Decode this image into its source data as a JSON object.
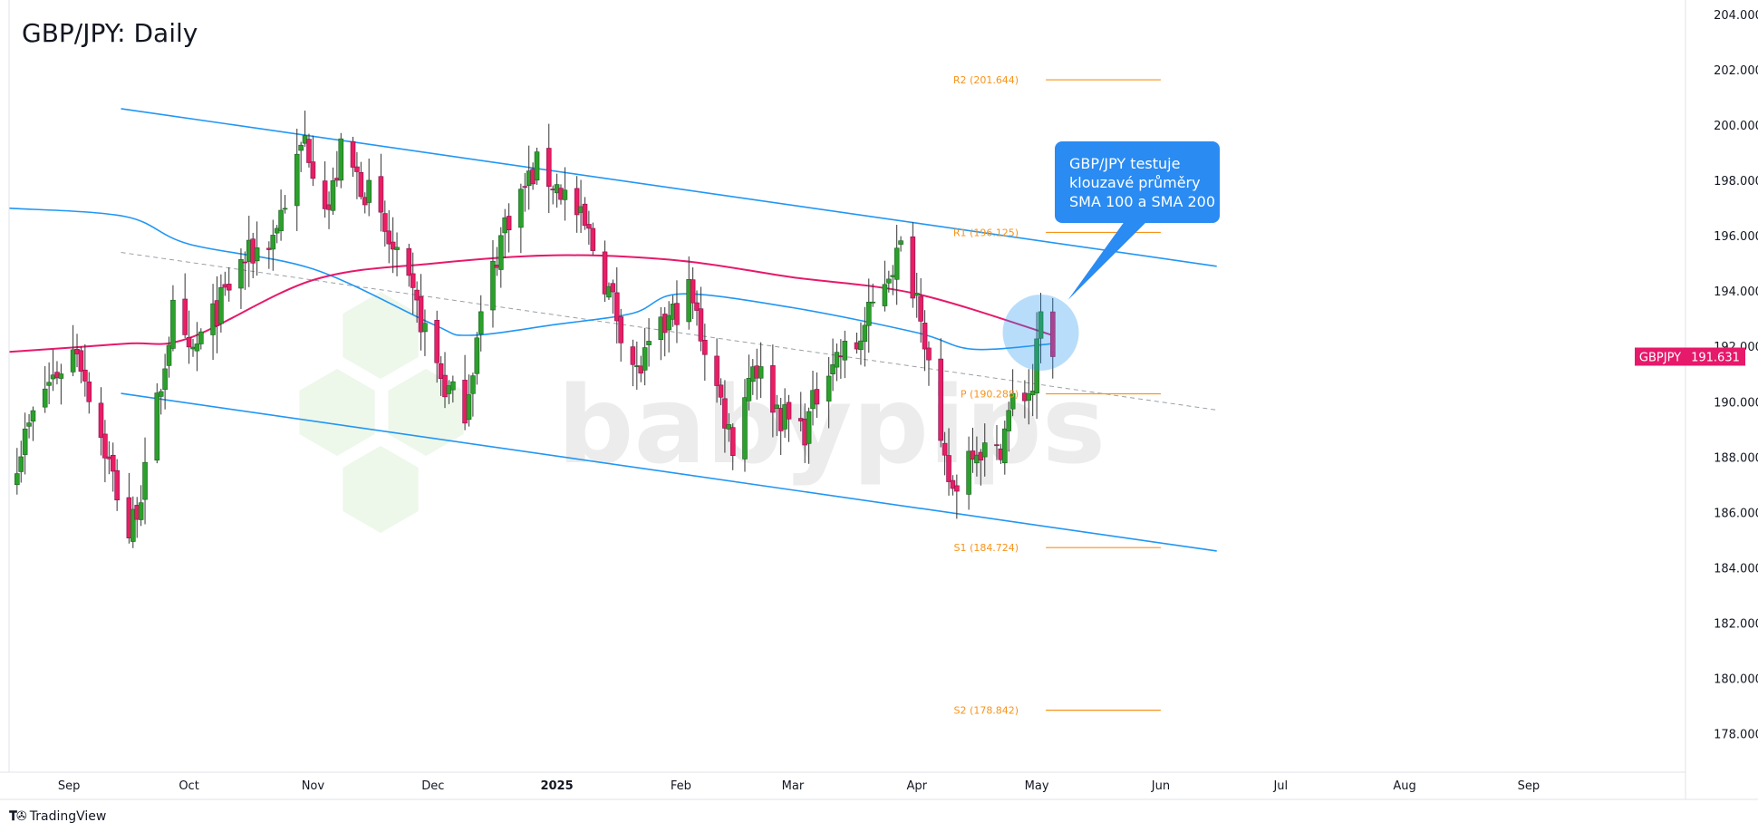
{
  "chart_title": "GBP/JPY: Daily",
  "callout_lines": [
    "GBP/JPY testuje",
    "klouzavé průměry",
    "SMA 100 a SMA 200"
  ],
  "footer": {
    "brand": "TradingView",
    "logo_icon": "tradingview-logo-icon"
  },
  "watermark": "babypips",
  "colors": {
    "up": "#089981",
    "up_fill": "#2ca02c",
    "down": "#e91e63",
    "sma100": "#2196f3",
    "sma200": "#e6196b",
    "channel": "#2196f3",
    "pivot": "#f7931a",
    "callout": "#2a8bf2"
  },
  "chart_data": {
    "type": "candlestick",
    "symbol": "GBPJPY",
    "last_price": "191.631",
    "y_range": [
      176.6,
      204.4
    ],
    "y_ticks": [
      "178.000",
      "180.000",
      "182.000",
      "184.000",
      "186.000",
      "188.000",
      "190.000",
      "192.000",
      "194.000",
      "196.000",
      "198.000",
      "200.000",
      "202.000",
      "204.000"
    ],
    "x_range": [
      "2024-08-17",
      "2025-10-10"
    ],
    "x_ticks": [
      {
        "label": "Sep",
        "date": "2024-09-01"
      },
      {
        "label": "Oct",
        "date": "2024-10-01"
      },
      {
        "label": "Nov",
        "date": "2024-11-01"
      },
      {
        "label": "Dec",
        "date": "2024-12-01"
      },
      {
        "label": "2025",
        "date": "2025-01-01",
        "bold": true
      },
      {
        "label": "Feb",
        "date": "2025-02-01"
      },
      {
        "label": "Mar",
        "date": "2025-03-01"
      },
      {
        "label": "Apr",
        "date": "2025-04-01"
      },
      {
        "label": "May",
        "date": "2025-05-01"
      },
      {
        "label": "Jun",
        "date": "2025-06-01"
      },
      {
        "label": "Jul",
        "date": "2025-07-01"
      },
      {
        "label": "Aug",
        "date": "2025-08-01"
      },
      {
        "label": "Sep",
        "date": "2025-09-01"
      }
    ],
    "candles_start": "2024-08-19",
    "close_anchors": [
      [
        "2024-08-19",
        188.0
      ],
      [
        "2024-08-26",
        190.5
      ],
      [
        "2024-09-03",
        192.0
      ],
      [
        "2024-09-09",
        188.8
      ],
      [
        "2024-09-16",
        185.2
      ],
      [
        "2024-09-20",
        187.3
      ],
      [
        "2024-09-27",
        193.2
      ],
      [
        "2024-10-01",
        191.5
      ],
      [
        "2024-10-08",
        193.3
      ],
      [
        "2024-10-14",
        195.0
      ],
      [
        "2024-10-22",
        196.0
      ],
      [
        "2024-10-30",
        199.5
      ],
      [
        "2024-11-05",
        197.0
      ],
      [
        "2024-11-08",
        199.0
      ],
      [
        "2024-11-15",
        197.5
      ],
      [
        "2024-11-22",
        195.0
      ],
      [
        "2024-11-28",
        193.0
      ],
      [
        "2024-12-04",
        190.5
      ],
      [
        "2024-12-09",
        189.8
      ],
      [
        "2024-12-13",
        193.0
      ],
      [
        "2024-12-19",
        196.5
      ],
      [
        "2024-12-27",
        198.5
      ],
      [
        "2025-01-03",
        197.5
      ],
      [
        "2025-01-09",
        196.0
      ],
      [
        "2025-01-14",
        194.0
      ],
      [
        "2025-01-21",
        191.0
      ],
      [
        "2025-01-27",
        192.5
      ],
      [
        "2025-02-03",
        194.0
      ],
      [
        "2025-02-10",
        190.5
      ],
      [
        "2025-02-14",
        188.5
      ],
      [
        "2025-02-19",
        191.5
      ],
      [
        "2025-02-26",
        189.5
      ],
      [
        "2025-03-04",
        189.0
      ],
      [
        "2025-03-10",
        191.5
      ],
      [
        "2025-03-17",
        192.0
      ],
      [
        "2025-03-24",
        194.5
      ],
      [
        "2025-03-28",
        195.5
      ],
      [
        "2025-04-02",
        193.5
      ],
      [
        "2025-04-07",
        188.0
      ],
      [
        "2025-04-10",
        186.8
      ],
      [
        "2025-04-15",
        188.5
      ],
      [
        "2025-04-21",
        188.0
      ],
      [
        "2025-04-25",
        190.0
      ],
      [
        "2025-04-30",
        190.5
      ],
      [
        "2025-05-02",
        193.0
      ],
      [
        "2025-05-05",
        191.6
      ]
    ],
    "sma100": [
      [
        "2024-08-17",
        197.0
      ],
      [
        "2024-09-15",
        196.7
      ],
      [
        "2024-10-01",
        195.7
      ],
      [
        "2024-11-01",
        194.8
      ],
      [
        "2024-12-01",
        192.8
      ],
      [
        "2024-12-10",
        192.4
      ],
      [
        "2025-01-01",
        192.8
      ],
      [
        "2025-01-20",
        193.2
      ],
      [
        "2025-02-01",
        193.9
      ],
      [
        "2025-03-01",
        193.4
      ],
      [
        "2025-04-01",
        192.5
      ],
      [
        "2025-04-15",
        191.9
      ],
      [
        "2025-05-05",
        192.1
      ]
    ],
    "sma200": [
      [
        "2024-08-17",
        191.8
      ],
      [
        "2024-09-15",
        192.1
      ],
      [
        "2024-10-01",
        192.3
      ],
      [
        "2024-11-01",
        194.4
      ],
      [
        "2024-12-01",
        195.0
      ],
      [
        "2025-01-01",
        195.3
      ],
      [
        "2025-02-01",
        195.1
      ],
      [
        "2025-03-01",
        194.5
      ],
      [
        "2025-04-01",
        193.9
      ],
      [
        "2025-05-05",
        192.4
      ]
    ],
    "channel_upper": [
      [
        "2024-09-14",
        200.6
      ],
      [
        "2025-06-15",
        194.9
      ]
    ],
    "channel_lower": [
      [
        "2024-09-14",
        190.3
      ],
      [
        "2025-06-15",
        184.6
      ]
    ],
    "channel_mid": [
      [
        "2024-09-14",
        195.4
      ],
      [
        "2025-06-15",
        189.7
      ]
    ],
    "pivots": [
      {
        "label": "R2 (201.644)",
        "value": 201.644
      },
      {
        "label": "R1 (196.125)",
        "value": 196.125
      },
      {
        "label": "P (190.288)",
        "value": 190.288
      },
      {
        "label": "S1 (184.724)",
        "value": 184.724
      },
      {
        "label": "S2 (178.842)",
        "value": 178.842
      }
    ],
    "pivot_span": [
      "2025-05-01",
      "2025-06-01"
    ],
    "highlight_date": "2025-05-02",
    "highlight_value": 192.5
  }
}
